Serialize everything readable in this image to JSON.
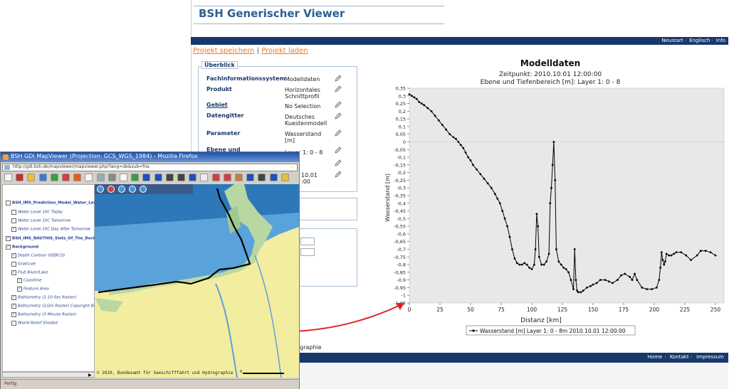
{
  "site": {
    "title": "BSH Generischer Viewer",
    "top_nav": [
      "Neustart",
      "Englisch",
      "Info"
    ],
    "project_links": {
      "save": "Projekt speichern",
      "separator": "|",
      "load": "Projekt laden"
    },
    "overview": {
      "legend": "Überblick",
      "rows": [
        {
          "label": "Fachinformationssystem",
          "value": "Modelldaten"
        },
        {
          "label": "Produkt",
          "value": "Horizontales Schnittprofil"
        },
        {
          "label": "Gebiet",
          "value": "No Selection"
        },
        {
          "label": "Datengitter",
          "value": "Deutsches Kuestenmodell"
        },
        {
          "label": "Parameter",
          "value": "Wasserstand [m]"
        },
        {
          "label": "Ebene und",
          "value": "Layer 1: 0 - 8"
        },
        {
          "label": "",
          "value": ""
        },
        {
          "label": "",
          "value": "10.01 :00"
        }
      ]
    },
    "fragment_text": "graphie",
    "footer_nav": [
      "Home",
      "Kontakt",
      "Impressum"
    ]
  },
  "chart_data": {
    "type": "line",
    "title": "Modelldaten",
    "subtitle1": "Zeitpunkt: 2010.10.01 12:00:00",
    "subtitle2": "Ebene und Tiefenbereich [m]: Layer 1: 0 - 8",
    "xlabel": "Distanz [km]",
    "ylabel": "Wasserstand [m]",
    "xlim": [
      0,
      257
    ],
    "ylim": [
      -1.05,
      0.35
    ],
    "xticks": [
      0,
      25,
      50,
      75,
      100,
      125,
      150,
      175,
      200,
      225,
      250
    ],
    "yticks": [
      0.35,
      0.3,
      0.25,
      0.2,
      0.15,
      0.1,
      0.05,
      0,
      -0.05,
      -0.1,
      -0.15,
      -0.2,
      -0.25,
      -0.3,
      -0.35,
      -0.4,
      -0.45,
      -0.5,
      -0.55,
      -0.6,
      -0.65,
      -0.7,
      -0.75,
      -0.8,
      -0.85,
      -0.9,
      -0.95,
      -1,
      -1.05
    ],
    "ytick_labels": [
      "0,35",
      "0,3",
      "0,25",
      "0,2",
      "0,15",
      "0,1",
      "0,05",
      "0",
      "-0,05",
      "-0,1",
      "-0,15",
      "-0,2",
      "-0,25",
      "-0,3",
      "-0,35",
      "-0,4",
      "-0,45",
      "-0,5",
      "-0,55",
      "-0,6",
      "-0,65",
      "-0,7",
      "-0,75",
      "-0,8",
      "-0,85",
      "-0,9",
      "-0,95",
      "-1",
      "-1,05"
    ],
    "grid": false,
    "zero_line": true,
    "legend_position": "bottom",
    "series": [
      {
        "name": "Wasserstand [m] Layer 1: 0 - 8m 2010.10.01 12:00:00",
        "color": "#000000",
        "x": [
          0,
          2,
          4,
          6,
          8,
          10,
          12,
          15,
          18,
          21,
          24,
          27,
          30,
          33,
          36,
          38,
          40,
          42,
          44,
          46,
          48,
          50,
          52,
          55,
          58,
          61,
          64,
          67,
          70,
          72,
          74,
          76,
          78,
          80,
          82,
          84,
          86,
          88,
          90,
          92,
          94,
          96,
          98,
          100,
          102,
          103,
          104,
          105,
          106,
          108,
          110,
          112,
          114,
          115,
          116,
          117,
          118,
          119,
          120,
          122,
          124,
          126,
          128,
          130,
          132,
          134,
          135,
          136,
          137,
          138,
          140,
          142,
          145,
          148,
          150,
          153,
          156,
          160,
          163,
          166,
          170,
          173,
          176,
          180,
          182,
          184,
          186,
          190,
          194,
          198,
          202,
          204,
          205,
          206,
          207,
          208,
          209,
          210,
          212,
          214,
          216,
          218,
          222,
          226,
          230,
          235,
          238,
          242,
          246,
          250
        ],
        "y": [
          0.31,
          0.3,
          0.29,
          0.28,
          0.26,
          0.25,
          0.24,
          0.22,
          0.2,
          0.17,
          0.14,
          0.11,
          0.08,
          0.05,
          0.03,
          0.02,
          0.0,
          -0.02,
          -0.04,
          -0.07,
          -0.1,
          -0.12,
          -0.15,
          -0.18,
          -0.21,
          -0.24,
          -0.27,
          -0.3,
          -0.34,
          -0.37,
          -0.4,
          -0.45,
          -0.5,
          -0.55,
          -0.62,
          -0.7,
          -0.76,
          -0.79,
          -0.8,
          -0.8,
          -0.79,
          -0.8,
          -0.82,
          -0.83,
          -0.8,
          -0.7,
          -0.47,
          -0.55,
          -0.75,
          -0.8,
          -0.8,
          -0.78,
          -0.73,
          -0.4,
          -0.3,
          -0.15,
          0.0,
          -0.25,
          -0.7,
          -0.78,
          -0.8,
          -0.82,
          -0.83,
          -0.85,
          -0.9,
          -0.96,
          -0.7,
          -0.9,
          -0.97,
          -0.98,
          -0.98,
          -0.97,
          -0.95,
          -0.94,
          -0.93,
          -0.92,
          -0.9,
          -0.9,
          -0.91,
          -0.92,
          -0.9,
          -0.87,
          -0.86,
          -0.88,
          -0.9,
          -0.86,
          -0.9,
          -0.95,
          -0.96,
          -0.96,
          -0.95,
          -0.9,
          -0.82,
          -0.72,
          -0.77,
          -0.8,
          -0.78,
          -0.73,
          -0.74,
          -0.74,
          -0.73,
          -0.72,
          -0.72,
          -0.74,
          -0.77,
          -0.74,
          -0.71,
          -0.71,
          -0.72,
          -0.74
        ]
      }
    ]
  },
  "firefox": {
    "title": "BSH GDI MapViewer (Projection: GCS_WGS_1984) - Mozilla Firefox",
    "address": "http://gdi.bsh.de/mapviewer/mapviewer.php?lang=de&sub=fna",
    "status": "Fertig",
    "copyright": "© 2010, Bundesamt für Seeschifffahrt und Hydrographie",
    "scale_label": "0",
    "tree": [
      {
        "text": "BSH_IMS_Prediction_Model_Water_Level_Model",
        "style": "bold",
        "indent": 0,
        "checked": false
      },
      {
        "text": "Water Level 10C Today",
        "style": "it",
        "indent": 1,
        "checked": false
      },
      {
        "text": "Water Level 10C Tomorrow",
        "style": "it",
        "indent": 1,
        "checked": false
      },
      {
        "text": "Water Level 10C Day After Tomorrow",
        "style": "it",
        "indent": 1,
        "checked": true
      },
      {
        "text": "BSH_IMS_NAUTHIS_Slots_Of_The_Dock",
        "style": "bold",
        "indent": 0,
        "checked": true
      },
      {
        "text": "Background",
        "style": "bold",
        "indent": 0,
        "checked": true
      },
      {
        "text": "Depth Contour (GEBCO)",
        "style": "it",
        "indent": 1,
        "checked": true
      },
      {
        "text": "Graticule",
        "style": "it",
        "indent": 1,
        "checked": false
      },
      {
        "text": "Fluß River/Lake",
        "style": "it",
        "indent": 1,
        "checked": true
      },
      {
        "text": "Coastline",
        "style": "it",
        "indent": 2,
        "checked": true
      },
      {
        "text": "Feature Area",
        "style": "it",
        "indent": 2,
        "checked": true
      },
      {
        "text": "Bathymetry (1-10 Sec Raster)",
        "style": "it",
        "indent": 1,
        "checked": true
      },
      {
        "text": "Bathymetry (1/2m Raster) Copyright BSH",
        "style": "it",
        "indent": 1,
        "checked": true
      },
      {
        "text": "Bathymetry (3 Minute Raster)",
        "style": "it",
        "indent": 1,
        "checked": true
      },
      {
        "text": "World Relief Shaded",
        "style": "it",
        "indent": 1,
        "checked": false
      }
    ],
    "toolbar_icons": [
      "new-icon",
      "close-icon",
      "open-icon",
      "add-icon",
      "remove-icon",
      "stop-icon",
      "refresh-icon",
      "zoom-in-icon",
      "zoom-out-icon",
      "pan-icon",
      "full-extent-icon",
      "globe-icon",
      "back-icon",
      "forward-icon",
      "find-icon",
      "binoculars-icon",
      "info-icon",
      "list-icon",
      "select-icon",
      "measure-icon",
      "chart-icon",
      "help-icon",
      "print-icon",
      "save-icon",
      "layers-icon"
    ],
    "map_tools": [
      "check-icon",
      "cancel-icon",
      "zoom-icon",
      "settings-icon",
      "minus-icon"
    ]
  }
}
